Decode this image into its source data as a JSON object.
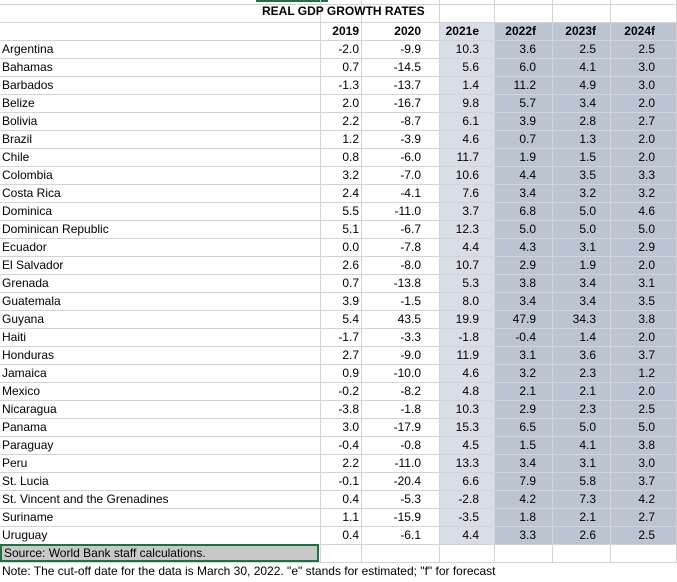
{
  "table": {
    "title": "REAL GDP GROWTH RATES",
    "headers": [
      "2019",
      "2020",
      "2021e",
      "2022f",
      "2023f",
      "2024f"
    ],
    "rows": [
      {
        "country": "Argentina",
        "values": [
          "-2.0",
          "-9.9",
          "10.3",
          "3.6",
          "2.5",
          "2.5"
        ]
      },
      {
        "country": "Bahamas",
        "values": [
          "0.7",
          "-14.5",
          "5.6",
          "6.0",
          "4.1",
          "3.0"
        ]
      },
      {
        "country": "Barbados",
        "values": [
          "-1.3",
          "-13.7",
          "1.4",
          "11.2",
          "4.9",
          "3.0"
        ]
      },
      {
        "country": "Belize",
        "values": [
          "2.0",
          "-16.7",
          "9.8",
          "5.7",
          "3.4",
          "2.0"
        ]
      },
      {
        "country": "Bolivia",
        "values": [
          "2.2",
          "-8.7",
          "6.1",
          "3.9",
          "2.8",
          "2.7"
        ]
      },
      {
        "country": "Brazil",
        "values": [
          "1.2",
          "-3.9",
          "4.6",
          "0.7",
          "1.3",
          "2.0"
        ]
      },
      {
        "country": "Chile",
        "values": [
          "0.8",
          "-6.0",
          "11.7",
          "1.9",
          "1.5",
          "2.0"
        ]
      },
      {
        "country": "Colombia",
        "values": [
          "3.2",
          "-7.0",
          "10.6",
          "4.4",
          "3.5",
          "3.3"
        ]
      },
      {
        "country": "Costa Rica",
        "values": [
          "2.4",
          "-4.1",
          "7.6",
          "3.4",
          "3.2",
          "3.2"
        ]
      },
      {
        "country": "Dominica",
        "values": [
          "5.5",
          "-11.0",
          "3.7",
          "6.8",
          "5.0",
          "4.6"
        ]
      },
      {
        "country": "Dominican Republic",
        "values": [
          "5.1",
          "-6.7",
          "12.3",
          "5.0",
          "5.0",
          "5.0"
        ]
      },
      {
        "country": "Ecuador",
        "values": [
          "0.0",
          "-7.8",
          "4.4",
          "4.3",
          "3.1",
          "2.9"
        ]
      },
      {
        "country": "El Salvador",
        "values": [
          "2.6",
          "-8.0",
          "10.7",
          "2.9",
          "1.9",
          "2.0"
        ]
      },
      {
        "country": "Grenada",
        "values": [
          "0.7",
          "-13.8",
          "5.3",
          "3.8",
          "3.4",
          "3.1"
        ]
      },
      {
        "country": "Guatemala",
        "values": [
          "3.9",
          "-1.5",
          "8.0",
          "3.4",
          "3.4",
          "3.5"
        ]
      },
      {
        "country": "Guyana",
        "values": [
          "5.4",
          "43.5",
          "19.9",
          "47.9",
          "34.3",
          "3.8"
        ]
      },
      {
        "country": "Haiti",
        "values": [
          "-1.7",
          "-3.3",
          "-1.8",
          "-0.4",
          "1.4",
          "2.0"
        ]
      },
      {
        "country": "Honduras",
        "values": [
          "2.7",
          "-9.0",
          "11.9",
          "3.1",
          "3.6",
          "3.7"
        ]
      },
      {
        "country": "Jamaica",
        "values": [
          "0.9",
          "-10.0",
          "4.6",
          "3.2",
          "2.3",
          "1.2"
        ]
      },
      {
        "country": "Mexico",
        "values": [
          "-0.2",
          "-8.2",
          "4.8",
          "2.1",
          "2.1",
          "2.0"
        ]
      },
      {
        "country": "Nicaragua",
        "values": [
          "-3.8",
          "-1.8",
          "10.3",
          "2.9",
          "2.3",
          "2.5"
        ]
      },
      {
        "country": "Panama",
        "values": [
          "3.0",
          "-17.9",
          "15.3",
          "6.5",
          "5.0",
          "5.0"
        ]
      },
      {
        "country": "Paraguay",
        "values": [
          "-0.4",
          "-0.8",
          "4.5",
          "1.5",
          "4.1",
          "3.8"
        ]
      },
      {
        "country": "Peru",
        "values": [
          "2.2",
          "-11.0",
          "13.3",
          "3.4",
          "3.1",
          "3.0"
        ]
      },
      {
        "country": "St. Lucia",
        "values": [
          "-0.1",
          "-20.4",
          "6.6",
          "7.9",
          "5.8",
          "3.7"
        ]
      },
      {
        "country": "St. Vincent and the Grenadines",
        "values": [
          "0.4",
          "-5.3",
          "-2.8",
          "4.2",
          "7.3",
          "4.2"
        ]
      },
      {
        "country": "Suriname",
        "values": [
          "1.1",
          "-15.9",
          "-3.5",
          "1.8",
          "2.1",
          "2.7"
        ]
      },
      {
        "country": "Uruguay",
        "values": [
          "0.4",
          "-6.1",
          "4.4",
          "3.3",
          "2.6",
          "2.5"
        ]
      }
    ],
    "source": "Source: World Bank staff calculations.",
    "note": "Note: The cut-off date for the data is March 30, 2022. \"e\" stands for estimated; \"f\" for forecast"
  }
}
